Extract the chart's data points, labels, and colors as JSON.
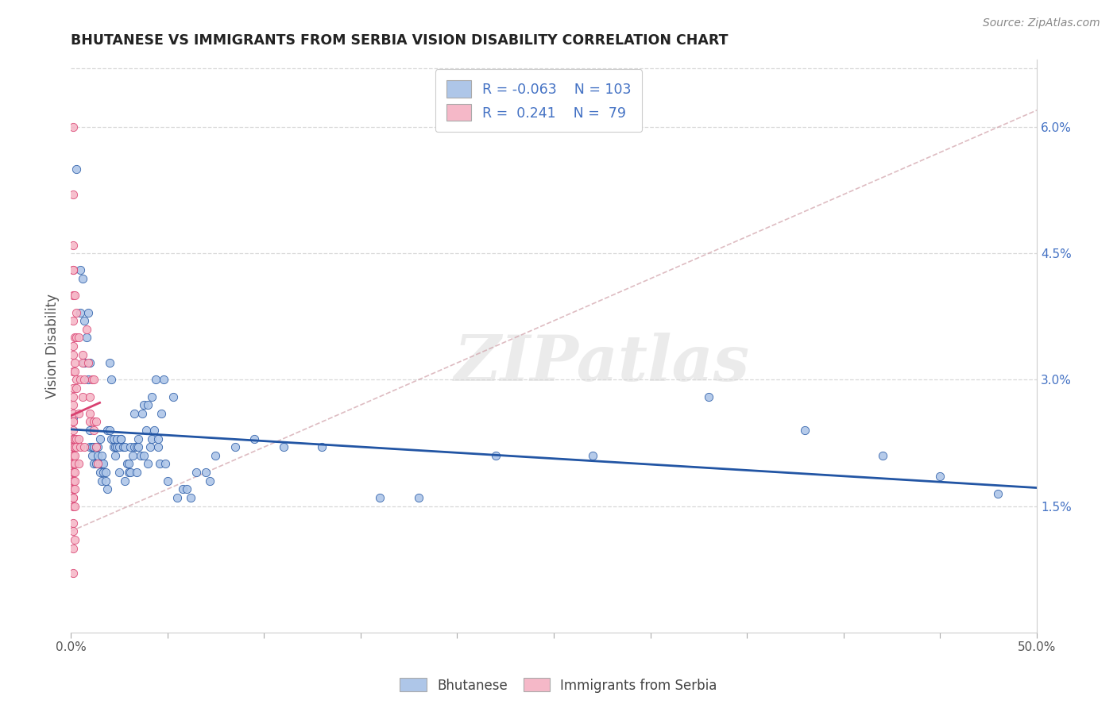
{
  "title": "BHUTANESE VS IMMIGRANTS FROM SERBIA VISION DISABILITY CORRELATION CHART",
  "source": "Source: ZipAtlas.com",
  "ylabel": "Vision Disability",
  "xlim": [
    0.0,
    0.5
  ],
  "ylim": [
    0.0,
    0.068
  ],
  "yticks_right": [
    0.015,
    0.03,
    0.045,
    0.06
  ],
  "ytick_labels_right": [
    "1.5%",
    "3.0%",
    "4.5%",
    "6.0%"
  ],
  "blue_R": "-0.063",
  "blue_N": "103",
  "pink_R": "0.241",
  "pink_N": "79",
  "blue_color": "#aec6e8",
  "pink_color": "#f5b8c8",
  "blue_line_color": "#2255a4",
  "pink_line_color": "#d94070",
  "diagonal_color": "#d0a0a8",
  "watermark": "ZIPatlas",
  "legend_blue_label": "Bhutanese",
  "legend_pink_label": "Immigrants from Serbia",
  "blue_scatter_x": [
    0.001,
    0.003,
    0.005,
    0.005,
    0.006,
    0.007,
    0.007,
    0.008,
    0.009,
    0.009,
    0.01,
    0.01,
    0.01,
    0.011,
    0.011,
    0.012,
    0.012,
    0.013,
    0.013,
    0.014,
    0.014,
    0.015,
    0.015,
    0.015,
    0.016,
    0.016,
    0.016,
    0.017,
    0.017,
    0.018,
    0.018,
    0.019,
    0.019,
    0.02,
    0.02,
    0.021,
    0.021,
    0.022,
    0.022,
    0.023,
    0.023,
    0.024,
    0.024,
    0.025,
    0.025,
    0.026,
    0.026,
    0.027,
    0.028,
    0.028,
    0.029,
    0.03,
    0.03,
    0.031,
    0.031,
    0.032,
    0.033,
    0.033,
    0.034,
    0.034,
    0.035,
    0.035,
    0.036,
    0.037,
    0.038,
    0.038,
    0.039,
    0.04,
    0.04,
    0.041,
    0.042,
    0.042,
    0.043,
    0.044,
    0.045,
    0.045,
    0.046,
    0.047,
    0.048,
    0.049,
    0.05,
    0.053,
    0.055,
    0.058,
    0.06,
    0.062,
    0.065,
    0.07,
    0.072,
    0.075,
    0.085,
    0.095,
    0.11,
    0.13,
    0.16,
    0.18,
    0.22,
    0.27,
    0.33,
    0.38,
    0.42,
    0.45,
    0.48
  ],
  "blue_scatter_y": [
    0.0255,
    0.055,
    0.043,
    0.038,
    0.042,
    0.037,
    0.032,
    0.035,
    0.038,
    0.03,
    0.032,
    0.024,
    0.022,
    0.021,
    0.022,
    0.022,
    0.02,
    0.02,
    0.022,
    0.022,
    0.021,
    0.023,
    0.02,
    0.019,
    0.021,
    0.018,
    0.02,
    0.02,
    0.019,
    0.019,
    0.018,
    0.017,
    0.024,
    0.032,
    0.024,
    0.03,
    0.023,
    0.022,
    0.023,
    0.022,
    0.021,
    0.023,
    0.022,
    0.022,
    0.019,
    0.023,
    0.023,
    0.022,
    0.022,
    0.018,
    0.02,
    0.019,
    0.02,
    0.022,
    0.019,
    0.021,
    0.026,
    0.022,
    0.022,
    0.019,
    0.023,
    0.022,
    0.021,
    0.026,
    0.021,
    0.027,
    0.024,
    0.02,
    0.027,
    0.022,
    0.028,
    0.023,
    0.024,
    0.03,
    0.022,
    0.023,
    0.02,
    0.026,
    0.03,
    0.02,
    0.018,
    0.028,
    0.016,
    0.017,
    0.017,
    0.016,
    0.019,
    0.019,
    0.018,
    0.021,
    0.022,
    0.023,
    0.022,
    0.022,
    0.016,
    0.016,
    0.021,
    0.021,
    0.028,
    0.024,
    0.021,
    0.0185,
    0.0165
  ],
  "pink_scatter_x": [
    0.001,
    0.001,
    0.001,
    0.001,
    0.001,
    0.001,
    0.001,
    0.001,
    0.001,
    0.001,
    0.001,
    0.001,
    0.001,
    0.001,
    0.001,
    0.001,
    0.001,
    0.001,
    0.001,
    0.001,
    0.001,
    0.001,
    0.001,
    0.001,
    0.001,
    0.001,
    0.001,
    0.001,
    0.001,
    0.001,
    0.001,
    0.001,
    0.001,
    0.001,
    0.002,
    0.002,
    0.002,
    0.002,
    0.002,
    0.002,
    0.002,
    0.002,
    0.002,
    0.002,
    0.002,
    0.003,
    0.003,
    0.003,
    0.003,
    0.003,
    0.003,
    0.004,
    0.004,
    0.004,
    0.004,
    0.005,
    0.005,
    0.006,
    0.006,
    0.006,
    0.007,
    0.007,
    0.008,
    0.009,
    0.01,
    0.01,
    0.01,
    0.011,
    0.012,
    0.012,
    0.012,
    0.013,
    0.013,
    0.014,
    0.001,
    0.001,
    0.001,
    0.002,
    0.002
  ],
  "pink_scatter_y": [
    0.06,
    0.052,
    0.046,
    0.043,
    0.043,
    0.04,
    0.037,
    0.034,
    0.033,
    0.031,
    0.029,
    0.028,
    0.027,
    0.026,
    0.025,
    0.025,
    0.024,
    0.023,
    0.023,
    0.022,
    0.022,
    0.021,
    0.021,
    0.02,
    0.02,
    0.019,
    0.019,
    0.018,
    0.018,
    0.017,
    0.016,
    0.016,
    0.015,
    0.013,
    0.04,
    0.035,
    0.032,
    0.031,
    0.023,
    0.022,
    0.021,
    0.02,
    0.019,
    0.018,
    0.017,
    0.038,
    0.035,
    0.03,
    0.029,
    0.023,
    0.022,
    0.035,
    0.026,
    0.023,
    0.02,
    0.03,
    0.022,
    0.033,
    0.032,
    0.028,
    0.03,
    0.022,
    0.036,
    0.032,
    0.028,
    0.026,
    0.025,
    0.03,
    0.03,
    0.025,
    0.024,
    0.025,
    0.022,
    0.02,
    0.012,
    0.01,
    0.007,
    0.015,
    0.011
  ]
}
